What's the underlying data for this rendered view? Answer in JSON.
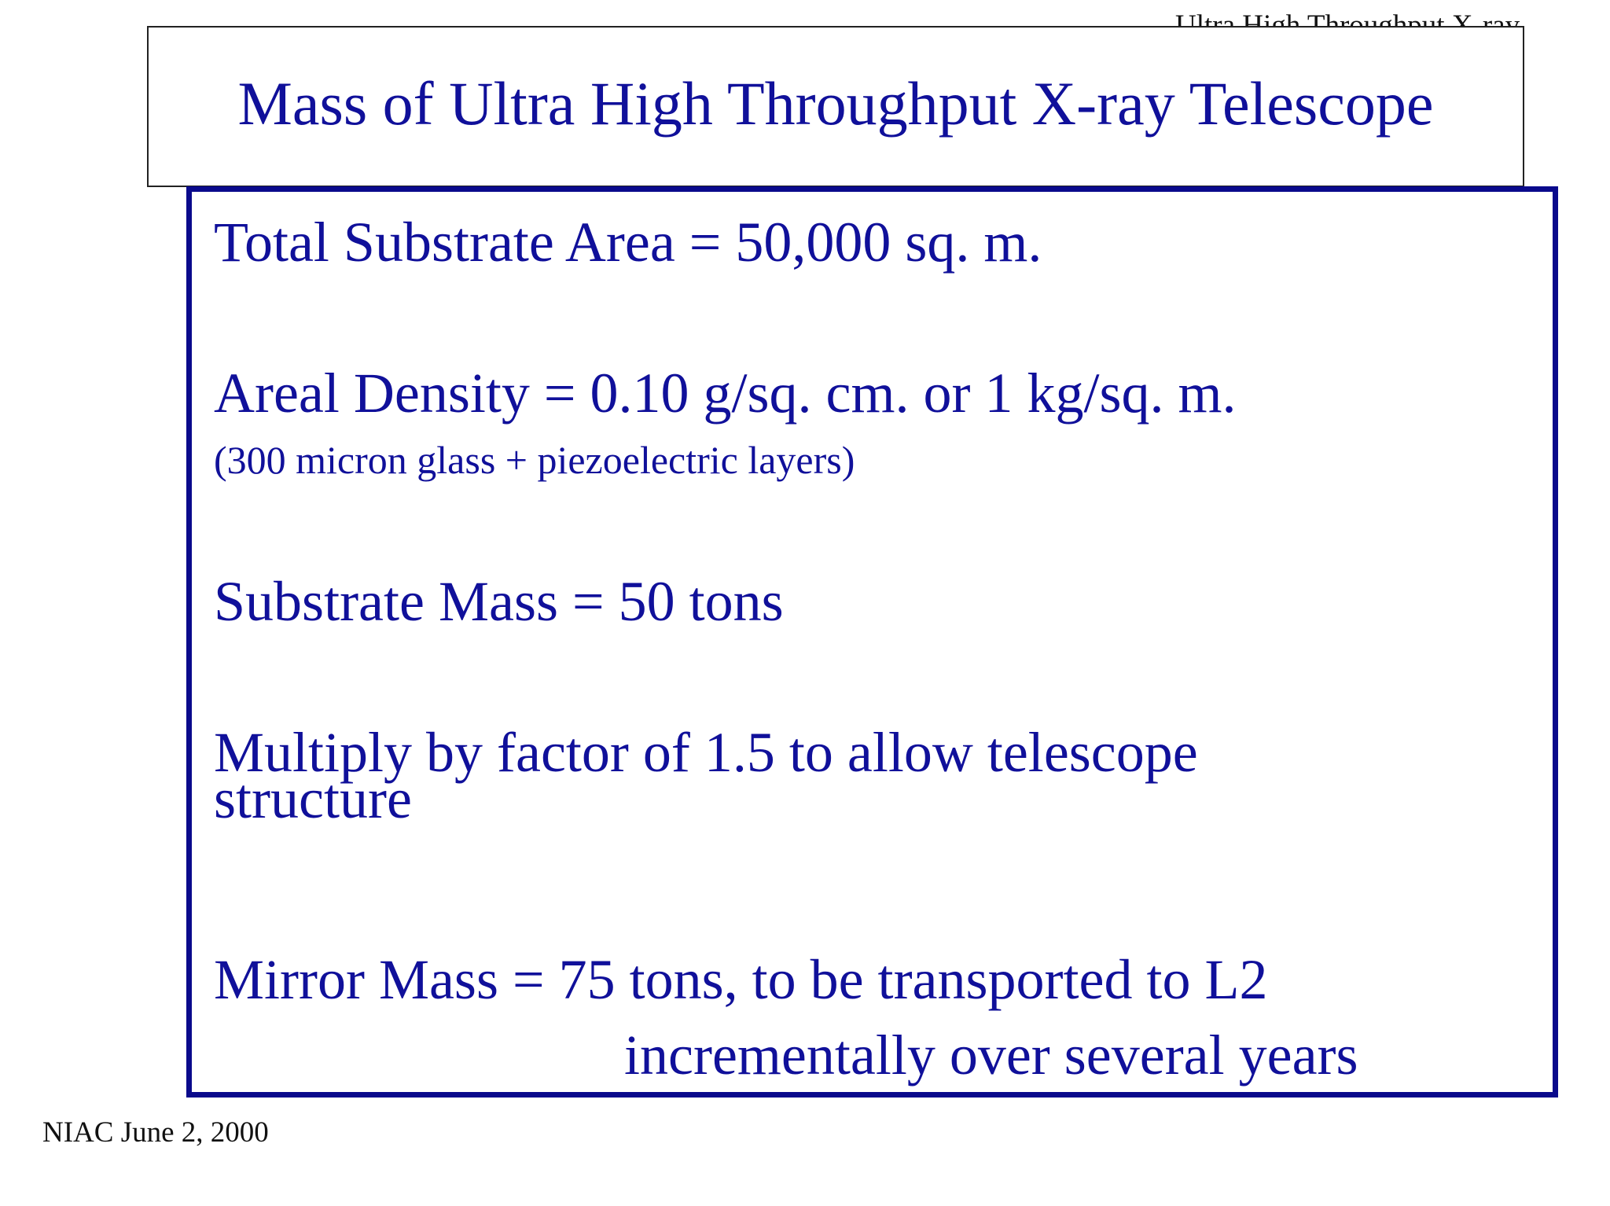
{
  "header": {
    "tag": "Ultra High Throughput X-ray"
  },
  "title": "Mass of Ultra High Throughput X-ray Telescope",
  "content": {
    "total_substrate_area": "Total Substrate Area = 50,000  sq. m.",
    "areal_density": "Areal Density = 0.10 g/sq. cm. or 1 kg/sq. m.",
    "areal_density_note": "(300 micron glass + piezoelectric layers)",
    "substrate_mass": "Substrate Mass =  50 tons",
    "multiply_line1": "Multiply by factor of 1.5 to allow telescope",
    "multiply_line2": "structure",
    "mirror_mass_line1": "Mirror Mass = 75 tons, to be transported to L2",
    "mirror_mass_line2": "incrementally over several years"
  },
  "footer": {
    "text": "NIAC June 2, 2000"
  },
  "colors": {
    "text_blue": "#10109a",
    "border_blue": "#0a0a8c"
  }
}
